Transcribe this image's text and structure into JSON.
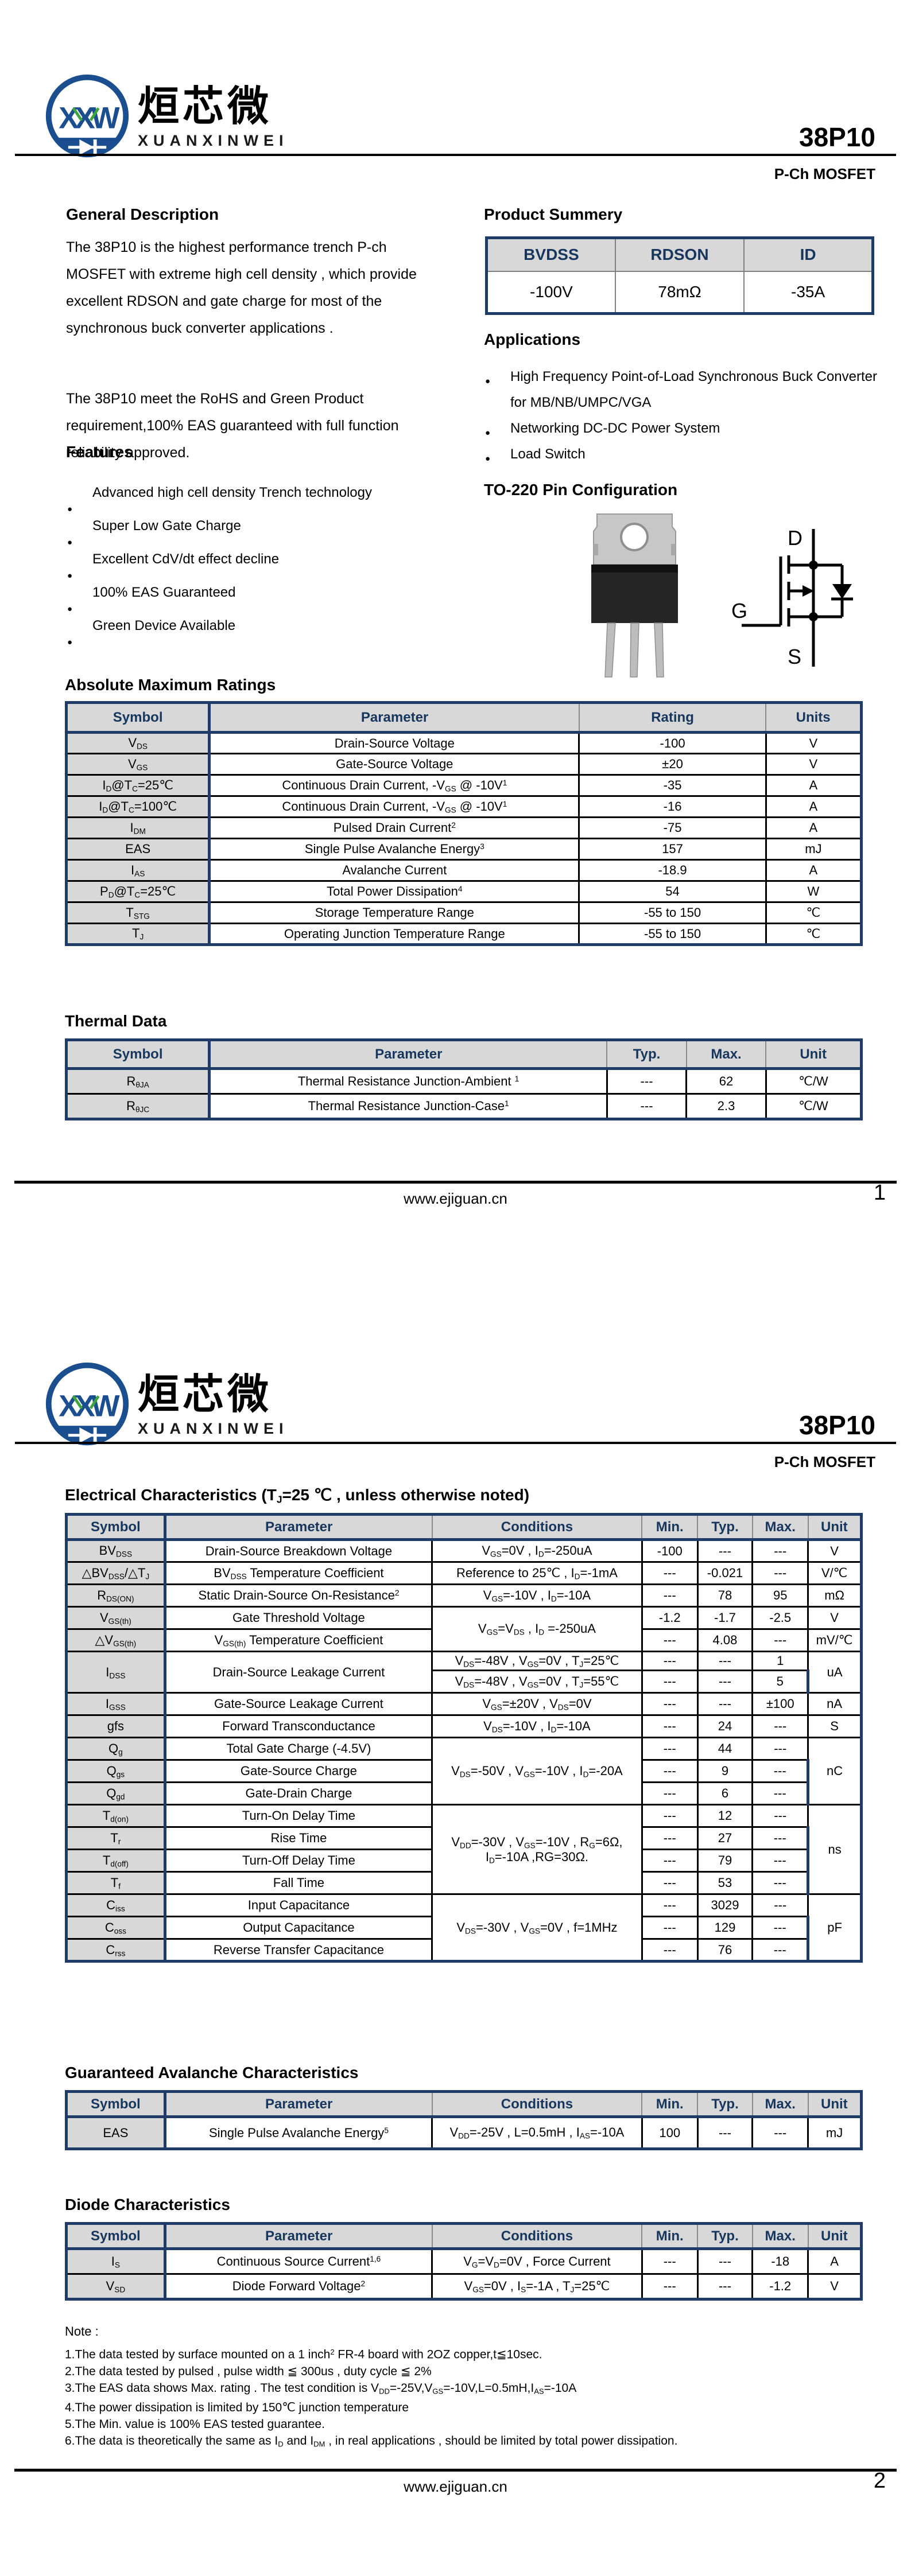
{
  "brand": {
    "logo_monogram": "XXW",
    "logo_cn": "烜芯微",
    "logo_en": "XUANXINWEI",
    "part_number": "38P10",
    "device_type": "P-Ch MOSFET"
  },
  "footer": {
    "site": "www.ejiguan.cn",
    "page1": "1",
    "page2": "2"
  },
  "page1": {
    "general_description": {
      "title": "General Description",
      "p1": "The  38P10  is the highest performance trench P-ch MOSFET with extreme high cell density , which provide excellent RDSON and gate charge for most of the synchronous buck converter applications .",
      "p2": "The  38P10  meet the RoHS and Green Product requirement,100% EAS guaranteed with full function reliability approved."
    },
    "features": {
      "title": "Features",
      "items": [
        "Advanced high cell density Trench technology",
        "Super Low Gate Charge",
        "Excellent CdV/dt effect decline",
        "100% EAS Guaranteed",
        "Green Device Available"
      ]
    },
    "product_summary": {
      "title": "Product Summery",
      "headers": [
        "BVDSS",
        "RDSON",
        "ID"
      ],
      "values": [
        "-100V",
        "78mΩ",
        "-35A"
      ]
    },
    "applications": {
      "title": "Applications",
      "items": [
        "High Frequency Point-of-Load Synchronous Buck Converter for MB/NB/UMPC/VGA",
        "Networking DC-DC Power System",
        "Load Switch"
      ]
    },
    "pin_config": {
      "title": "TO-220 Pin Configuration",
      "drain": "D",
      "gate": "G",
      "source": "S"
    },
    "abs_max": {
      "title": "Absolute Maximum Ratings",
      "headers": [
        "Symbol",
        "Parameter",
        "Rating",
        "Units"
      ],
      "rows": [
        {
          "s": "V<sub>DS</sub>",
          "p": "Drain-Source Voltage",
          "r": "-100",
          "u": "V"
        },
        {
          "s": "V<sub>GS</sub>",
          "p": "Gate-Source Voltage",
          "r": "±20",
          "u": "V"
        },
        {
          "s": "I<sub>D</sub>@T<sub>C</sub>=25℃",
          "p": "Continuous Drain Current, -V<sub>GS</sub> @ -10V<sup>1</sup>",
          "r": "-35",
          "u": "A"
        },
        {
          "s": "I<sub>D</sub>@T<sub>C</sub>=100℃",
          "p": "Continuous Drain Current, -V<sub>GS</sub> @ -10V<sup>1</sup>",
          "r": "-16",
          "u": "A"
        },
        {
          "s": "I<sub>DM</sub>",
          "p": "Pulsed Drain Current<sup>2</sup>",
          "r": "-75",
          "u": "A"
        },
        {
          "s": "EAS",
          "p": "Single Pulse Avalanche Energy<sup>3</sup>",
          "r": "157",
          "u": "mJ"
        },
        {
          "s": "I<sub>AS</sub>",
          "p": "Avalanche Current",
          "r": "-18.9",
          "u": "A"
        },
        {
          "s": "P<sub>D</sub>@T<sub>C</sub>=25℃",
          "p": "Total Power Dissipation<sup>4</sup>",
          "r": "54",
          "u": "W"
        },
        {
          "s": "T<sub>STG</sub>",
          "p": "Storage Temperature Range",
          "r": "-55 to 150",
          "u": "℃"
        },
        {
          "s": "T<sub>J</sub>",
          "p": "Operating Junction Temperature Range",
          "r": "-55 to 150",
          "u": "℃"
        }
      ]
    },
    "thermal": {
      "title": "Thermal Data",
      "headers": [
        "Symbol",
        "Parameter",
        "Typ.",
        "Max.",
        "Unit"
      ],
      "rows": [
        {
          "s": "R<sub>θJA</sub>",
          "p": "Thermal Resistance Junction-Ambient <sup>1</sup>",
          "typ": "---",
          "max": "62",
          "u": "℃/W"
        },
        {
          "s": "R<sub>θJC</sub>",
          "p": "Thermal Resistance Junction-Case<sup>1</sup>",
          "typ": "---",
          "max": "2.3",
          "u": "℃/W"
        }
      ]
    }
  },
  "page2": {
    "electrical": {
      "title": "Electrical Characteristics (T<sub>J</sub>=25 ℃ , unless otherwise noted)",
      "headers": [
        "Symbol",
        "Parameter",
        "Conditions",
        "Min.",
        "Typ.",
        "Max.",
        "Unit"
      ],
      "rows": [
        {
          "s": "BV<sub>DSS</sub>",
          "p": "Drain-Source Breakdown Voltage",
          "c": "V<sub>GS</sub>=0V , I<sub>D</sub>=-250uA",
          "min": "-100",
          "typ": "---",
          "max": "---",
          "u": "V"
        },
        {
          "s": "△BV<sub>DSS</sub>/△T<sub>J</sub>",
          "p": "BV<sub>DSS</sub> Temperature Coefficient",
          "c": "Reference to 25℃ , I<sub>D</sub>=-1mA",
          "min": "---",
          "typ": "-0.021",
          "max": "---",
          "u": "V/℃"
        },
        {
          "s": "R<sub>DS(ON)</sub>",
          "p": "Static Drain-Source On-Resistance<sup>2</sup>",
          "c": "V<sub>GS</sub>=-10V , I<sub>D</sub>=-10A",
          "min": "---",
          "typ": "78",
          "max": "95",
          "u": "mΩ"
        },
        {
          "s": "V<sub>GS(th)</sub>",
          "p": "Gate Threshold Voltage",
          "c": "V<sub>GS</sub>=V<sub>DS</sub> , I<sub>D</sub> =-250uA",
          "min": "-1.2",
          "typ": "-1.7",
          "max": "-2.5",
          "u": "V"
        },
        {
          "s": "△V<sub>GS(th)</sub>",
          "p": "V<sub>GS(th)</sub> Temperature Coefficient",
          "min": "---",
          "typ": "4.08",
          "max": "---",
          "u": "mV/℃"
        },
        {
          "s": "I<sub>DSS</sub>",
          "p": "Drain-Source Leakage Current",
          "c": "V<sub>DS</sub>=-48V , V<sub>GS</sub>=0V , T<sub>J</sub>=25℃",
          "min": "---",
          "typ": "---",
          "max": "1",
          "u": "uA"
        },
        {
          "c": "V<sub>DS</sub>=-48V , V<sub>GS</sub>=0V , T<sub>J</sub>=55℃",
          "min": "---",
          "typ": "---",
          "max": "5"
        },
        {
          "s": "I<sub>GSS</sub>",
          "p": "Gate-Source Leakage Current",
          "c": "V<sub>GS</sub>=±20V , V<sub>DS</sub>=0V",
          "min": "---",
          "typ": "---",
          "max": "±100",
          "u": "nA"
        },
        {
          "s": "gfs",
          "p": "Forward Transconductance",
          "c": "V<sub>DS</sub>=-10V , I<sub>D</sub>=-10A",
          "min": "---",
          "typ": "24",
          "max": "---",
          "u": "S"
        },
        {
          "s": "Q<sub>g</sub>",
          "p": "Total Gate Charge (-4.5V)",
          "c": "V<sub>DS</sub>=-50V , V<sub>GS</sub>=-10V , I<sub>D</sub>=-20A",
          "min": "---",
          "typ": "44",
          "max": "---",
          "u": "nC"
        },
        {
          "s": "Q<sub>gs</sub>",
          "p": "Gate-Source Charge",
          "min": "---",
          "typ": "9",
          "max": "---"
        },
        {
          "s": "Q<sub>gd</sub>",
          "p": "Gate-Drain Charge",
          "min": "---",
          "typ": "6",
          "max": "---"
        },
        {
          "s": "T<sub>d(on)</sub>",
          "p": "Turn-On Delay Time",
          "c": "V<sub>DD</sub>=-30V , V<sub>GS</sub>=-10V , R<sub>G</sub>=6Ω, I<sub>D</sub>=-10A ,RG=30Ω.",
          "min": "---",
          "typ": "12",
          "max": "---",
          "u": "ns"
        },
        {
          "s": "T<sub>r</sub>",
          "p": "Rise Time",
          "min": "---",
          "typ": "27",
          "max": "---"
        },
        {
          "s": "T<sub>d(off)</sub>",
          "p": "Turn-Off Delay Time",
          "min": "---",
          "typ": "79",
          "max": "---"
        },
        {
          "s": "T<sub>f</sub>",
          "p": "Fall Time",
          "min": "---",
          "typ": "53",
          "max": "---"
        },
        {
          "s": "C<sub>iss</sub>",
          "p": "Input Capacitance",
          "c": "V<sub>DS</sub>=-30V , V<sub>GS</sub>=0V , f=1MHz",
          "min": "---",
          "typ": "3029",
          "max": "---",
          "u": "pF"
        },
        {
          "s": "C<sub>oss</sub>",
          "p": "Output Capacitance",
          "min": "---",
          "typ": "129",
          "max": "---"
        },
        {
          "s": "C<sub>rss</sub>",
          "p": "Reverse Transfer Capacitance",
          "min": "---",
          "typ": "76",
          "max": "---"
        }
      ]
    },
    "avalanche": {
      "title": "Guaranteed Avalanche Characteristics",
      "headers": [
        "Symbol",
        "Parameter",
        "Conditions",
        "Min.",
        "Typ.",
        "Max.",
        "Unit"
      ],
      "rows": [
        {
          "s": "EAS",
          "p": "Single Pulse Avalanche Energy<sup>5</sup>",
          "c": "V<sub>DD</sub>=-25V , L=0.5mH , I<sub>AS</sub>=-10A",
          "min": "100",
          "typ": "---",
          "max": "---",
          "u": "mJ"
        }
      ]
    },
    "diode": {
      "title": "Diode Characteristics",
      "headers": [
        "Symbol",
        "Parameter",
        "Conditions",
        "Min.",
        "Typ.",
        "Max.",
        "Unit"
      ],
      "rows": [
        {
          "s": "I<sub>S</sub>",
          "p": "Continuous Source Current<sup>1,6</sup>",
          "c": "V<sub>G</sub>=V<sub>D</sub>=0V , Force Current",
          "min": "---",
          "typ": "---",
          "max": "-18",
          "u": "A"
        },
        {
          "s": "V<sub>SD</sub>",
          "p": "Diode Forward Voltage<sup>2</sup>",
          "c": "V<sub>GS</sub>=0V , I<sub>S</sub>=-1A , T<sub>J</sub>=25℃",
          "min": "---",
          "typ": "---",
          "max": "-1.2",
          "u": "V"
        }
      ]
    },
    "notes": {
      "title": "Note :",
      "items": [
        "1.The data tested by surface mounted on a 1 inch<sup>2</sup> FR-4 board with 2OZ copper,t≦10sec.",
        "2.The data tested by pulsed , pulse width ≦ 300us , duty cycle ≦ 2%",
        "3.The EAS data shows Max. rating . The test condition is V<sub>DD</sub>=-25V,V<sub>GS</sub>=-10V,L=0.5mH,I<sub>AS</sub>=-10A",
        "4.The power dissipation is limited by 150℃  junction temperature",
        "5.The Min. value is 100% EAS tested guarantee.",
        "6.The data is theoretically the same as I<sub>D</sub> and I<sub>DM</sub> , in real applications , should be limited by total power dissipation."
      ]
    }
  }
}
